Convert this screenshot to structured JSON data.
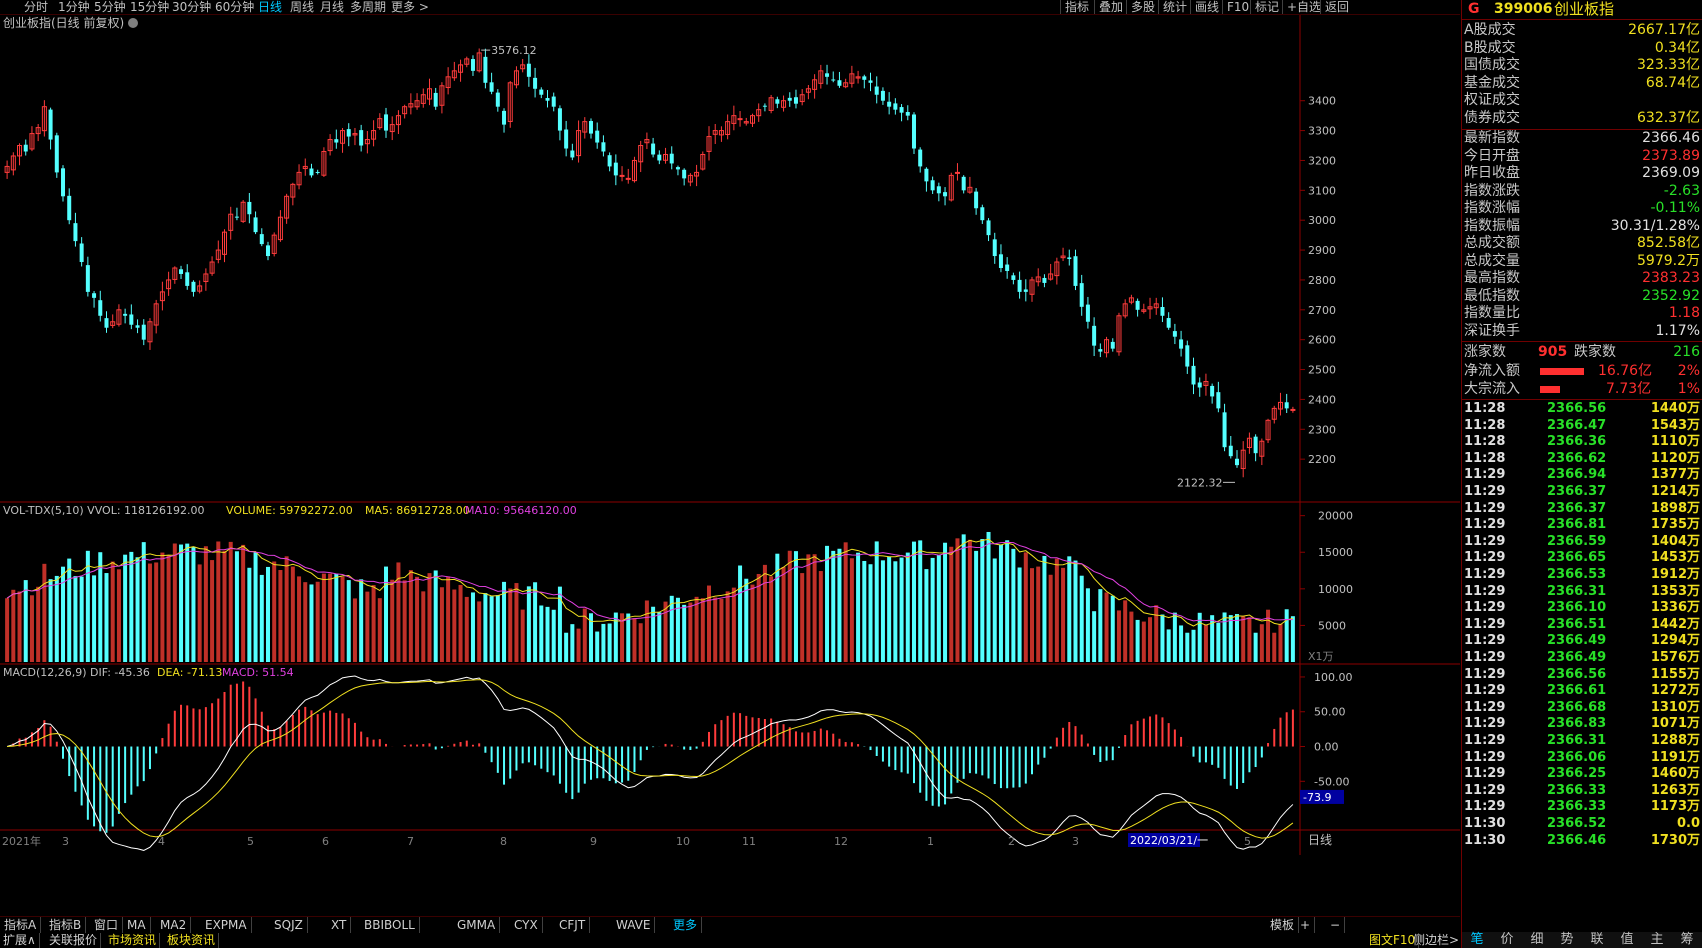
{
  "periods": [
    "分时",
    "1分钟",
    "5分钟",
    "15分钟",
    "30分钟",
    "60分钟",
    "日线",
    "周线",
    "月线",
    "多周期",
    "更多 >"
  ],
  "active_period": "日线",
  "toolbar": [
    "指标",
    "叠加",
    "多股",
    "统计",
    "画线",
    "F10",
    "标记",
    "+自选",
    "返回"
  ],
  "main_title": "创业板指(日线 前复权)",
  "quote": {
    "g_label": "G",
    "code": "399006",
    "name": "创业板指",
    "summary": [
      {
        "label": "A股成交",
        "value": "2667.17亿"
      },
      {
        "label": "B股成交",
        "value": "0.34亿"
      },
      {
        "label": "国债成交",
        "value": "323.33亿"
      },
      {
        "label": "基金成交",
        "value": "68.74亿"
      },
      {
        "label": "权证成交",
        "value": ""
      },
      {
        "label": "债券成交",
        "value": "632.37亿"
      }
    ],
    "stats": [
      {
        "label": "最新指数",
        "value": "2366.46",
        "color": "#e0e0e0"
      },
      {
        "label": "今日开盘",
        "value": "2373.89",
        "color": "#ff3030"
      },
      {
        "label": "昨日收盘",
        "value": "2369.09",
        "color": "#e0e0e0"
      },
      {
        "label": "指数涨跌",
        "value": "-2.63",
        "color": "#28e028"
      },
      {
        "label": "指数涨幅",
        "value": "-0.11%",
        "color": "#28e028"
      },
      {
        "label": "指数振幅",
        "value": "30.31/1.28%",
        "color": "#e0e0e0"
      },
      {
        "label": "总成交额",
        "value": "852.58亿",
        "color": "#f0e020"
      },
      {
        "label": "总成交量",
        "value": "5979.2万",
        "color": "#f0e020"
      },
      {
        "label": "最高指数",
        "value": "2383.23",
        "color": "#ff3030"
      },
      {
        "label": "最低指数",
        "value": "2352.92",
        "color": "#28e028"
      },
      {
        "label": "指数量比",
        "value": "1.18",
        "color": "#ff3030"
      },
      {
        "label": "深证换手",
        "value": "1.17%",
        "color": "#e0e0e0"
      }
    ],
    "rise_label": "涨家数",
    "rise_value": "905",
    "fall_label": "跌家数",
    "fall_value": "216",
    "net_inflow_label": "净流入额",
    "net_inflow_value": "16.76亿",
    "net_inflow_pct": "2%",
    "block_inflow_label": "大宗流入",
    "block_inflow_value": "7.73亿",
    "block_inflow_pct": "1%",
    "ticks": [
      {
        "t": "11:28",
        "p": "2366.56",
        "v": "1440万"
      },
      {
        "t": "11:28",
        "p": "2366.47",
        "v": "1543万"
      },
      {
        "t": "11:28",
        "p": "2366.36",
        "v": "1110万"
      },
      {
        "t": "11:28",
        "p": "2366.62",
        "v": "1120万"
      },
      {
        "t": "11:29",
        "p": "2366.94",
        "v": "1377万"
      },
      {
        "t": "11:29",
        "p": "2366.37",
        "v": "1214万"
      },
      {
        "t": "11:29",
        "p": "2366.37",
        "v": "1898万"
      },
      {
        "t": "11:29",
        "p": "2366.81",
        "v": "1735万"
      },
      {
        "t": "11:29",
        "p": "2366.59",
        "v": "1404万"
      },
      {
        "t": "11:29",
        "p": "2366.65",
        "v": "1453万"
      },
      {
        "t": "11:29",
        "p": "2366.53",
        "v": "1912万"
      },
      {
        "t": "11:29",
        "p": "2366.31",
        "v": "1353万"
      },
      {
        "t": "11:29",
        "p": "2366.10",
        "v": "1336万"
      },
      {
        "t": "11:29",
        "p": "2366.51",
        "v": "1442万"
      },
      {
        "t": "11:29",
        "p": "2366.49",
        "v": "1294万"
      },
      {
        "t": "11:29",
        "p": "2366.49",
        "v": "1576万"
      },
      {
        "t": "11:29",
        "p": "2366.56",
        "v": "1155万"
      },
      {
        "t": "11:29",
        "p": "2366.61",
        "v": "1272万"
      },
      {
        "t": "11:29",
        "p": "2366.68",
        "v": "1310万"
      },
      {
        "t": "11:29",
        "p": "2366.83",
        "v": "1071万"
      },
      {
        "t": "11:29",
        "p": "2366.31",
        "v": "1288万"
      },
      {
        "t": "11:29",
        "p": "2366.06",
        "v": "1191万"
      },
      {
        "t": "11:29",
        "p": "2366.25",
        "v": "1460万"
      },
      {
        "t": "11:29",
        "p": "2366.33",
        "v": "1263万"
      },
      {
        "t": "11:29",
        "p": "2366.33",
        "v": "1173万"
      },
      {
        "t": "11:30",
        "p": "2366.52",
        "v": "0.0"
      },
      {
        "t": "11:30",
        "p": "2366.46",
        "v": "1730万"
      }
    ],
    "tabs": [
      "笔",
      "价",
      "细",
      "势",
      "联",
      "值",
      "主",
      "筹"
    ]
  },
  "bottom_tabs": [
    "指标A",
    "指标B",
    "窗口",
    "MA",
    "MA2",
    "EXPMA",
    "SQJZ",
    "XT",
    "BBIBOLL",
    "GMMA",
    "CYX",
    "CFJT",
    "WAVE",
    "更多"
  ],
  "bottom2": [
    {
      "text": "扩展∧",
      "color": "#d0d0d0"
    },
    {
      "text": "关联报价",
      "color": "#d0d0d0"
    },
    {
      "text": "市场资讯",
      "color": "#f0e020"
    },
    {
      "text": "板块资讯",
      "color": "#f0e020"
    }
  ],
  "bottom2_right": [
    "图文F10",
    "侧边栏>"
  ],
  "chart_data": [
    {
      "type": "candlestick",
      "title": "创业板指(日线 前复权)",
      "yticks": [
        2200,
        2300,
        2400,
        2500,
        2600,
        2700,
        2800,
        2900,
        3000,
        3100,
        3200,
        3300,
        3400
      ],
      "ylim": [
        2080,
        3620
      ],
      "xlabels": [
        "2021年",
        "3",
        "4",
        "5",
        "6",
        "7",
        "8",
        "9",
        "10",
        "11",
        "12",
        "1",
        "2",
        "3",
        "5"
      ],
      "annotations": [
        {
          "text": "3576.12",
          "value": 3576.12
        },
        {
          "text": "2122.32",
          "value": 2122.32
        }
      ],
      "closes": [
        3180,
        3215,
        3250,
        3230,
        3290,
        3310,
        3380,
        3270,
        3160,
        3080,
        3000,
        2930,
        2860,
        2760,
        2740,
        2680,
        2640,
        2660,
        2700,
        2680,
        2650,
        2640,
        2600,
        2660,
        2720,
        2760,
        2800,
        2840,
        2820,
        2780,
        2760,
        2780,
        2820,
        2860,
        2900,
        2960,
        3020,
        3010,
        3060,
        3020,
        2960,
        2920,
        2880,
        2950,
        3010,
        3080,
        3120,
        3160,
        3180,
        3150,
        3160,
        3230,
        3270,
        3260,
        3300,
        3280,
        3290,
        3250,
        3270,
        3300,
        3340,
        3300,
        3320,
        3350,
        3380,
        3390,
        3400,
        3420,
        3440,
        3380,
        3450,
        3480,
        3500,
        3520,
        3540,
        3500,
        3560,
        3460,
        3430,
        3380,
        3320,
        3460,
        3500,
        3520,
        3480,
        3440,
        3420,
        3400,
        3380,
        3300,
        3240,
        3210,
        3300,
        3330,
        3290,
        3260,
        3230,
        3180,
        3150,
        3150,
        3140,
        3200,
        3250,
        3270,
        3220,
        3200,
        3220,
        3190,
        3170,
        3140,
        3150,
        3160,
        3220,
        3280,
        3300,
        3300,
        3330,
        3350,
        3340,
        3330,
        3350,
        3370,
        3380,
        3410,
        3390,
        3400,
        3400,
        3390,
        3420,
        3440,
        3470,
        3500,
        3480,
        3470,
        3450,
        3460,
        3490,
        3480,
        3470,
        3460,
        3420,
        3400,
        3380,
        3370,
        3360,
        3350,
        3240,
        3180,
        3130,
        3100,
        3090,
        3080,
        3150,
        3160,
        3100,
        3110,
        3040,
        3000,
        2950,
        2880,
        2840,
        2830,
        2800,
        2760,
        2760,
        2800,
        2810,
        2790,
        2820,
        2860,
        2880,
        2870,
        2780,
        2710,
        2660,
        2580,
        2560,
        2600,
        2570,
        2680,
        2720,
        2740,
        2700,
        2700,
        2710,
        2720,
        2680,
        2640,
        2610,
        2570,
        2510,
        2450,
        2440,
        2460,
        2410,
        2370,
        2240,
        2210,
        2180,
        2230,
        2270,
        2220,
        2260,
        2330,
        2370,
        2390,
        2370,
        2366.46
      ],
      "volume": {
        "label": "VOL-TDX(5,10)",
        "vvol": "VVOL: 118126192.00",
        "volume": "VOLUME: 59792272.00",
        "ma5": "MA5: 86912728.00",
        "ma10": "MA10: 95646120.00",
        "yticks": [
          5000,
          10000,
          15000,
          20000
        ],
        "unit": "X1万"
      },
      "macd": {
        "label": "MACD(12,26,9)",
        "dif": "DIF: -45.36",
        "dea": "DEA: -71.13",
        "macd": "MACD: 51.54",
        "yticks": [
          100.0,
          50.0,
          0.0,
          -50.0
        ],
        "current_label": "-73.9"
      },
      "cursor_date": "2022/03/21/一",
      "period_label": "日线"
    }
  ]
}
